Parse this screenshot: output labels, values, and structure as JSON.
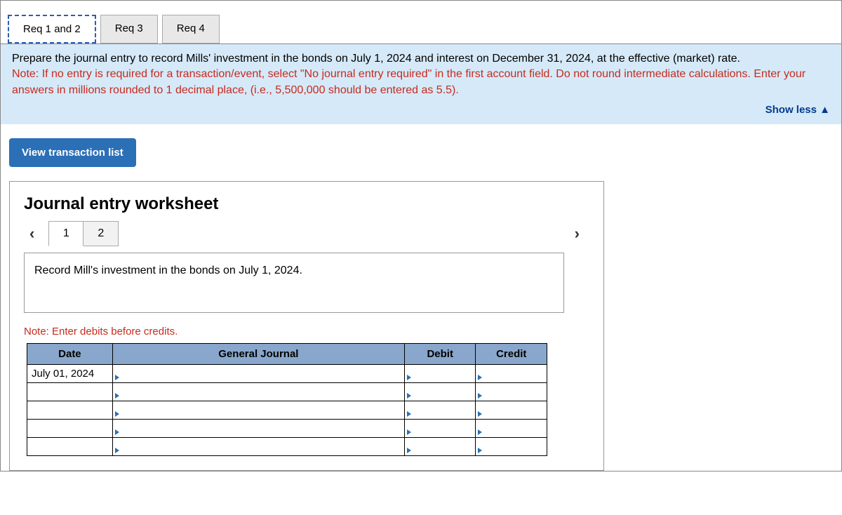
{
  "tabs": [
    {
      "label": "Req 1 and 2",
      "active": true
    },
    {
      "label": "Req 3",
      "active": false
    },
    {
      "label": "Req 4",
      "active": false
    }
  ],
  "instructions": {
    "main": "Prepare the journal entry to record Mills' investment in the bonds on July 1, 2024 and interest on December 31, 2024, at the effective (market) rate.",
    "note": "Note: If no entry is required for a transaction/event, select \"No journal entry required\" in the first account field. Do not round intermediate calculations. Enter your answers in millions rounded to 1 decimal place, (i.e., 5,500,000 should be entered as 5.5).",
    "show_less": "Show less"
  },
  "view_transaction_btn": "View transaction list",
  "worksheet": {
    "title": "Journal entry worksheet",
    "steps": [
      "1",
      "2"
    ],
    "transaction_text": "Record Mill's investment in the bonds on July 1, 2024.",
    "debits_note": "Note: Enter debits before credits.",
    "columns": {
      "date": "Date",
      "general_journal": "General Journal",
      "debit": "Debit",
      "credit": "Credit"
    },
    "rows": [
      {
        "date": "July 01, 2024",
        "gj": "",
        "debit": "",
        "credit": ""
      },
      {
        "date": "",
        "gj": "",
        "debit": "",
        "credit": ""
      },
      {
        "date": "",
        "gj": "",
        "debit": "",
        "credit": ""
      },
      {
        "date": "",
        "gj": "",
        "debit": "",
        "credit": ""
      },
      {
        "date": "",
        "gj": "",
        "debit": "",
        "credit": ""
      }
    ]
  },
  "colors": {
    "instruction_bg": "#d6e9f8",
    "note_color": "#c52b1e",
    "button_bg": "#2b6fb6",
    "table_header_bg": "#89a7cc",
    "link_color": "#003b8e"
  }
}
